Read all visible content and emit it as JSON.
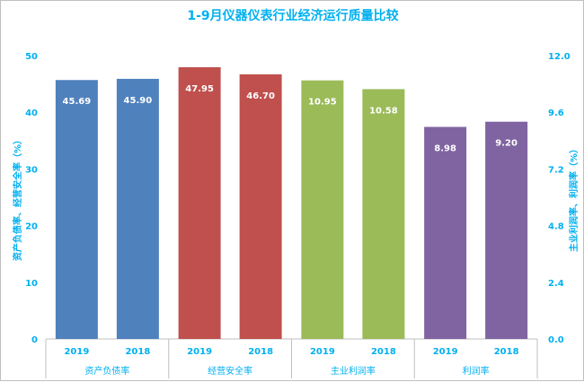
{
  "chart_data": {
    "type": "bar",
    "title": "1-9月仪器仪表行业经济运行质量比较",
    "ylabel_left": "资产负债率、经营安全率（%）",
    "ylabel_right": "主业利润率、利润率（%）",
    "left_axis": {
      "min": 0,
      "max": 50,
      "ticks": [
        0,
        10,
        20,
        30,
        40,
        50
      ]
    },
    "right_axis": {
      "min": 0,
      "max": 12,
      "ticks": [
        "0.0",
        "2.4",
        "4.8",
        "7.2",
        "9.6",
        "12.0"
      ]
    },
    "groups": [
      {
        "name": "资产负债率",
        "axis": "left",
        "color": "#4f81bd",
        "bars": [
          {
            "year": "2019",
            "value": 45.69,
            "label": "45.69"
          },
          {
            "year": "2018",
            "value": 45.9,
            "label": "45.90"
          }
        ]
      },
      {
        "name": "经营安全率",
        "axis": "left",
        "color": "#c0504d",
        "bars": [
          {
            "year": "2019",
            "value": 47.95,
            "label": "47.95"
          },
          {
            "year": "2018",
            "value": 46.7,
            "label": "46.70"
          }
        ]
      },
      {
        "name": "主业利润率",
        "axis": "right",
        "color": "#9bbb59",
        "bars": [
          {
            "year": "2019",
            "value": 10.95,
            "label": "10.95"
          },
          {
            "year": "2018",
            "value": 10.58,
            "label": "10.58"
          }
        ]
      },
      {
        "name": "利润率",
        "axis": "right",
        "color": "#8064a2",
        "bars": [
          {
            "year": "2019",
            "value": 8.98,
            "label": "8.98"
          },
          {
            "year": "2018",
            "value": 9.2,
            "label": "9.20"
          }
        ]
      }
    ],
    "accent_color": "#00b0f0",
    "grid": false,
    "legend": "none"
  }
}
